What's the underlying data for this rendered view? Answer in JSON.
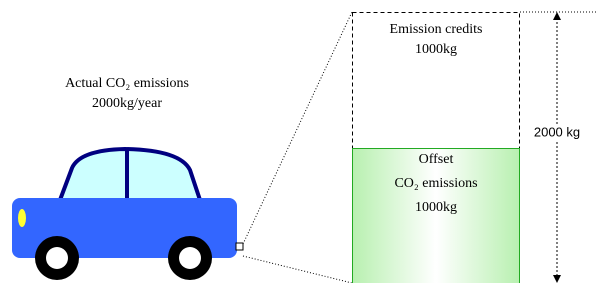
{
  "car": {
    "label": "Actual CO₂ emissions",
    "amount": "2000kg/year"
  },
  "credits": {
    "label": "Emission credits",
    "amount": "1000kg"
  },
  "offset": {
    "line1": "Offset",
    "line2": "CO₂ emissions",
    "amount": "1000kg"
  },
  "total": "2000 kg"
}
